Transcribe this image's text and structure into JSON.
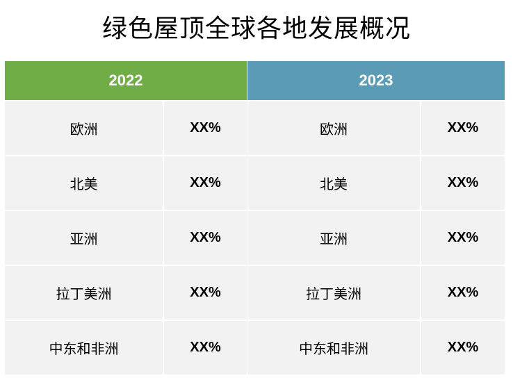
{
  "title": "绿色屋顶全球各地发展概况",
  "colors": {
    "header_2022": "#70ad47",
    "header_2023": "#5b9bb5",
    "cell_bg": "#f2f2f2"
  },
  "table": {
    "columns": [
      {
        "year": "2022",
        "rows": [
          {
            "region": "欧洲",
            "value": "XX%"
          },
          {
            "region": "北美",
            "value": "XX%"
          },
          {
            "region": "亚洲",
            "value": "XX%"
          },
          {
            "region": "拉丁美洲",
            "value": "XX%"
          },
          {
            "region": "中东和非洲",
            "value": "XX%"
          }
        ]
      },
      {
        "year": "2023",
        "rows": [
          {
            "region": "欧洲",
            "value": "XX%"
          },
          {
            "region": "北美",
            "value": "XX%"
          },
          {
            "region": "亚洲",
            "value": "XX%"
          },
          {
            "region": "拉丁美洲",
            "value": "XX%"
          },
          {
            "region": "中东和非洲",
            "value": "XX%"
          }
        ]
      }
    ]
  }
}
